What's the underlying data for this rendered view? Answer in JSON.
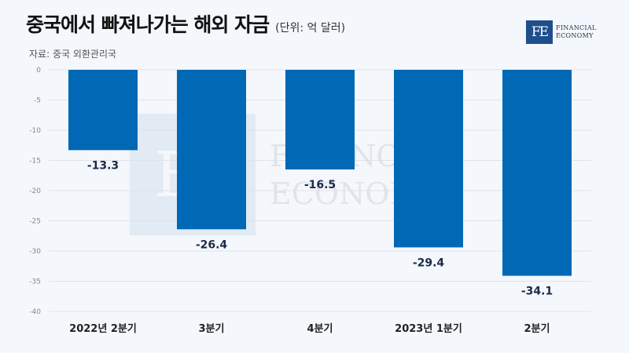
{
  "header": {
    "title": "중국에서 빠져나가는 해외 자금",
    "unit": "(단위: 억 달러)",
    "source": "자료: 중국 외환관리국"
  },
  "logo": {
    "mark": "FE",
    "line1": "FINANCIAL",
    "line2": "ECONOMY"
  },
  "watermark": {
    "mark": "FE",
    "line1": "FINANCIAL",
    "line2": "ECONOMY"
  },
  "colors": {
    "bar": "#0068b5",
    "grid": "#dfe3e8"
  },
  "chart_data": {
    "type": "bar",
    "categories": [
      "2022년 2분기",
      "3분기",
      "4분기",
      "2023년 1분기",
      "2분기"
    ],
    "values": [
      -13.3,
      -26.4,
      -16.5,
      -29.4,
      -34.1
    ],
    "value_labels": [
      "-13.3",
      "-26.4",
      "-16.5",
      "-29.4",
      "-34.1"
    ],
    "ylim": [
      -40,
      0
    ],
    "yticks": [
      0,
      -5,
      -10,
      -15,
      -20,
      -25,
      -30,
      -35,
      -40
    ],
    "grid": true
  }
}
